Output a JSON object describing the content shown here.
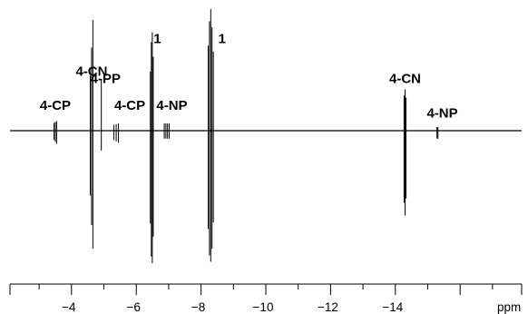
{
  "chart_data": {
    "type": "line",
    "title": "",
    "xlabel": "ppm",
    "ylabel": "",
    "x_reversed": true,
    "xlim": [
      -2.1,
      -17.9
    ],
    "ylim": [
      -1.0,
      1.0
    ],
    "grid": false,
    "axes": {
      "x_ticks": [
        -4,
        -6,
        -8,
        -10,
        -12,
        -14
      ],
      "x_unit": "ppm",
      "y_axis_shown": false
    },
    "tick_labels": [
      "−4",
      "−6",
      "−8",
      "−10",
      "−12",
      "−14"
    ],
    "baseline": 0,
    "peaks": [
      {
        "ppm": -3.5,
        "height": 0.08,
        "depth": -0.1,
        "lines": 3,
        "spacing": 0.04,
        "up_pattern": [
          1,
          0.9,
          0.8
        ],
        "down_pattern": [
          1,
          0.85,
          0.7
        ]
      },
      {
        "ppm": -4.62,
        "height": 0.91,
        "depth": -0.89,
        "lines": 3,
        "spacing": 0.04,
        "up_pattern": [
          1,
          0.75,
          0.5
        ],
        "down_pattern": [
          1,
          0.8,
          0.55
        ]
      },
      {
        "ppm": -4.92,
        "height": 0.42,
        "depth": -0.15,
        "lines": 1,
        "spacing": 0.0,
        "up_pattern": [
          1
        ],
        "down_pattern": [
          1
        ]
      },
      {
        "ppm": -5.38,
        "height": 0.06,
        "depth": -0.09,
        "lines": 3,
        "spacing": 0.07,
        "up_pattern": [
          1,
          0.9,
          0.8
        ],
        "down_pattern": [
          1,
          0.9,
          0.8
        ]
      },
      {
        "ppm": -6.48,
        "height": 0.81,
        "depth": -1.0,
        "lines": 4,
        "spacing": 0.03,
        "up_pattern": [
          0.75,
          1,
          0.9,
          0.6
        ],
        "down_pattern": [
          0.8,
          1,
          0.95,
          0.7
        ]
      },
      {
        "ppm": -6.94,
        "height": 0.06,
        "depth": -0.06,
        "lines": 4,
        "spacing": 0.05,
        "up_pattern": [
          1,
          1,
          1,
          1
        ],
        "down_pattern": [
          1,
          1,
          1,
          1
        ]
      },
      {
        "ppm": -8.3,
        "height": 1.0,
        "depth": -0.99,
        "lines": 5,
        "spacing": 0.04,
        "up_pattern": [
          0.65,
          0.85,
          1,
          0.9,
          0.7
        ],
        "down_pattern": [
          0.7,
          0.9,
          1,
          0.95,
          0.75
        ]
      },
      {
        "ppm": -14.3,
        "height": 0.34,
        "depth": -0.64,
        "lines": 3,
        "spacing": 0.03,
        "up_pattern": [
          0.8,
          1,
          0.85
        ],
        "down_pattern": [
          0.8,
          1,
          0.85
        ]
      },
      {
        "ppm": -15.3,
        "height": 0.03,
        "depth": -0.06,
        "lines": 2,
        "spacing": 0.03,
        "up_pattern": [
          1,
          1
        ],
        "down_pattern": [
          1,
          1
        ]
      }
    ],
    "annotations": [
      {
        "text": "4-CP",
        "ppm": -3.5,
        "level": 0.17
      },
      {
        "text": "4-CN",
        "ppm": -4.62,
        "level": 0.45
      },
      {
        "text": "4-PP",
        "ppm": -5.05,
        "level": 0.39
      },
      {
        "text": "4-CP",
        "ppm": -5.8,
        "level": 0.17
      },
      {
        "text": "4-NP",
        "ppm": -7.1,
        "level": 0.17
      },
      {
        "text": "1",
        "ppm": -6.65,
        "level": 0.72
      },
      {
        "text": "1",
        "ppm": -8.65,
        "level": 0.72
      },
      {
        "text": "4-CN",
        "ppm": -14.3,
        "level": 0.39
      },
      {
        "text": "4-NP",
        "ppm": -15.45,
        "level": 0.11
      }
    ]
  }
}
